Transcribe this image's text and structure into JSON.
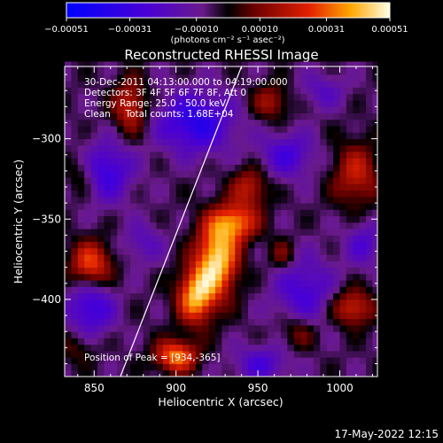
{
  "chart_data": {
    "type": "heatmap",
    "title": "Reconstructed RHESSI Image",
    "xlabel": "Heliocentric X (arcsec)",
    "ylabel": "Heliocentric Y (arcsec)",
    "xlim": [
      832,
      1023
    ],
    "ylim": [
      -448,
      -255
    ],
    "x_ticks": [
      {
        "value": 850,
        "label": "850"
      },
      {
        "value": 900,
        "label": "900"
      },
      {
        "value": 950,
        "label": "950"
      },
      {
        "value": 1000,
        "label": "1000"
      }
    ],
    "y_ticks": [
      {
        "value": -300,
        "label": "−300"
      },
      {
        "value": -350,
        "label": "−350"
      },
      {
        "value": -400,
        "label": "−400"
      }
    ],
    "colorbar": {
      "range": [
        -0.00051,
        0.00051
      ],
      "ticks": [
        {
          "value": -0.00051,
          "label": "−0.00051"
        },
        {
          "value": -0.00031,
          "label": "−0.00031"
        },
        {
          "value": -0.0001,
          "label": "−0.00010"
        },
        {
          "value": 0.0001,
          "label": "0.00010"
        },
        {
          "value": 0.00031,
          "label": "0.00031"
        },
        {
          "value": 0.00051,
          "label": "0.00051"
        }
      ],
      "unit_label": "(photons cm⁻² s⁻¹ asec⁻²)"
    },
    "annotations": [
      "30-Dec-2011 04:13:00.000 to 04:19:00.000",
      "Detectors: 3F 4F 5F 6F 7F 8F, Att 0",
      "Energy Range: 25.0 - 50.0 keV",
      "Clean     Total counts: 1.68E+04"
    ],
    "peak_label": "Position of Peak = [934,-365]",
    "limb_line": [
      {
        "x": 866,
        "y": -448
      },
      {
        "x": 940,
        "y": -255
      }
    ],
    "hot_spots": [
      {
        "x": 925,
        "y": -375,
        "v": 0.00051,
        "sx": 9,
        "sy": 16
      },
      {
        "x": 912,
        "y": -398,
        "v": 0.00044,
        "sx": 8,
        "sy": 12
      },
      {
        "x": 936,
        "y": -352,
        "v": 0.00036,
        "sx": 10,
        "sy": 8
      },
      {
        "x": 900,
        "y": -435,
        "v": 0.0004,
        "sx": 9,
        "sy": 7
      },
      {
        "x": 945,
        "y": -330,
        "v": 0.00024,
        "sx": 8,
        "sy": 9
      },
      {
        "x": 848,
        "y": -378,
        "v": 0.00034,
        "sx": 9,
        "sy": 10
      },
      {
        "x": 872,
        "y": -280,
        "v": 0.00028,
        "sx": 7,
        "sy": 12
      },
      {
        "x": 958,
        "y": -277,
        "v": 0.0002,
        "sx": 8,
        "sy": 8
      },
      {
        "x": 1010,
        "y": -322,
        "v": 0.00025,
        "sx": 10,
        "sy": 14
      },
      {
        "x": 1008,
        "y": -405,
        "v": 0.00029,
        "sx": 9,
        "sy": 8
      },
      {
        "x": 975,
        "y": -420,
        "v": 0.00017,
        "sx": 8,
        "sy": 8
      },
      {
        "x": 965,
        "y": -372,
        "v": 0.00016,
        "sx": 6,
        "sy": 7
      },
      {
        "x": 842,
        "y": -322,
        "v": 0.00013,
        "sx": 6,
        "sy": 9
      },
      {
        "x": 840,
        "y": -430,
        "v": 0.00011,
        "sx": 8,
        "sy": 7
      }
    ],
    "cold_spots": [
      {
        "x": 912,
        "y": -290,
        "v": -0.00032,
        "sx": 16,
        "sy": 13
      },
      {
        "x": 858,
        "y": -320,
        "v": -0.00026,
        "sx": 11,
        "sy": 13
      },
      {
        "x": 848,
        "y": -405,
        "v": -0.00027,
        "sx": 10,
        "sy": 12
      },
      {
        "x": 880,
        "y": -365,
        "v": -0.00014,
        "sx": 9,
        "sy": 9
      },
      {
        "x": 968,
        "y": -310,
        "v": -0.00022,
        "sx": 12,
        "sy": 10
      },
      {
        "x": 978,
        "y": -395,
        "v": -0.00022,
        "sx": 13,
        "sy": 16
      },
      {
        "x": 1015,
        "y": -365,
        "v": -0.00018,
        "sx": 8,
        "sy": 10
      },
      {
        "x": 952,
        "y": -440,
        "v": -0.0002,
        "sx": 12,
        "sy": 8
      },
      {
        "x": 990,
        "y": -270,
        "v": -0.00014,
        "sx": 10,
        "sy": 8
      }
    ]
  },
  "footer": {
    "timestamp": "17-May-2022 12:15"
  }
}
